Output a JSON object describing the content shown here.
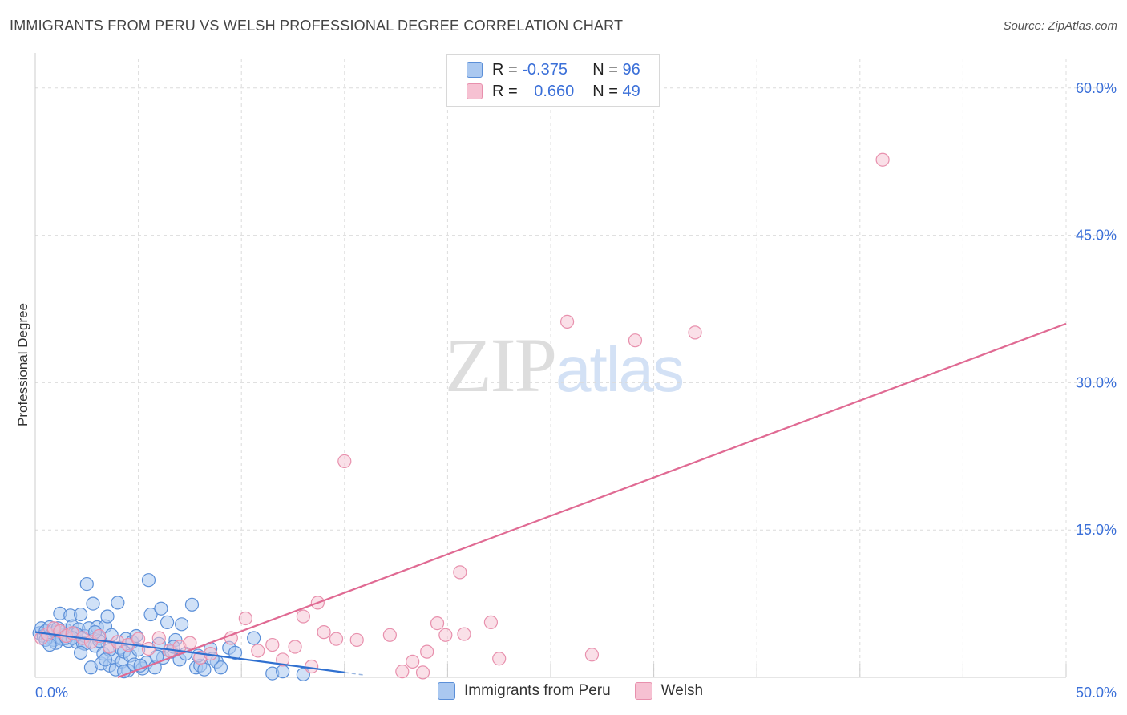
{
  "title": "IMMIGRANTS FROM PERU VS WELSH PROFESSIONAL DEGREE CORRELATION CHART",
  "source": "Source: ZipAtlas.com",
  "watermark": {
    "zip": "ZIP",
    "atlas": "atlas"
  },
  "legend": {
    "peru": {
      "r_label": "R = ",
      "r_value": "-0.375",
      "n_label": "N = ",
      "n_value": "96"
    },
    "welsh": {
      "r_label": "R = ",
      "r_value": "0.660",
      "n_label": "N = ",
      "n_value": "49"
    }
  },
  "colors": {
    "peru_fill": "#aac8f0",
    "peru_stroke": "#5b8fd8",
    "peru_line": "#3070d0",
    "welsh_fill": "#f6c1d2",
    "welsh_stroke": "#e890ad",
    "welsh_line": "#e06a93",
    "grid": "#dcdcdc",
    "tick_text": "#3a6fd8"
  },
  "chart_data": {
    "type": "scatter",
    "title": "IMMIGRANTS FROM PERU VS WELSH PROFESSIONAL DEGREE CORRELATION CHART",
    "xlabel": "",
    "ylabel": "Professional Degree",
    "xlim": [
      0,
      50
    ],
    "ylim": [
      0,
      63
    ],
    "x_tick_labels": [
      "0.0%",
      "50.0%"
    ],
    "y_ticks": [
      15,
      30,
      45,
      60
    ],
    "y_tick_labels": [
      "15.0%",
      "30.0%",
      "45.0%",
      "60.0%"
    ],
    "series": [
      {
        "name": "Immigrants from Peru",
        "r": -0.375,
        "n": 96,
        "trend": {
          "x0": 0,
          "y0": 4.6,
          "x1": 15.0,
          "y1": 0.5,
          "dash_to_x": 16.0
        },
        "points": [
          [
            0.2,
            4.5
          ],
          [
            0.3,
            5.0
          ],
          [
            0.4,
            4.2
          ],
          [
            0.5,
            4.7
          ],
          [
            0.6,
            4.0
          ],
          [
            0.7,
            5.1
          ],
          [
            0.8,
            4.4
          ],
          [
            0.9,
            3.8
          ],
          [
            1.0,
            4.6
          ],
          [
            1.1,
            4.1
          ],
          [
            1.2,
            6.5
          ],
          [
            1.3,
            3.9
          ],
          [
            1.4,
            4.3
          ],
          [
            1.5,
            4.8
          ],
          [
            1.6,
            3.7
          ],
          [
            1.7,
            6.3
          ],
          [
            1.8,
            5.2
          ],
          [
            1.9,
            4.5
          ],
          [
            2.0,
            3.6
          ],
          [
            2.1,
            4.9
          ],
          [
            2.2,
            6.4
          ],
          [
            2.3,
            3.5
          ],
          [
            2.4,
            4.2
          ],
          [
            2.5,
            9.5
          ],
          [
            2.6,
            5.0
          ],
          [
            2.7,
            1.0
          ],
          [
            2.8,
            7.5
          ],
          [
            2.9,
            3.2
          ],
          [
            3.0,
            5.1
          ],
          [
            3.1,
            4.0
          ],
          [
            3.2,
            1.4
          ],
          [
            3.3,
            2.4
          ],
          [
            3.4,
            5.2
          ],
          [
            3.5,
            6.2
          ],
          [
            3.6,
            1.2
          ],
          [
            3.7,
            4.3
          ],
          [
            3.8,
            2.0
          ],
          [
            3.9,
            0.8
          ],
          [
            4.0,
            7.6
          ],
          [
            4.1,
            3.0
          ],
          [
            4.2,
            1.6
          ],
          [
            4.3,
            2.6
          ],
          [
            4.4,
            3.9
          ],
          [
            4.5,
            0.7
          ],
          [
            4.6,
            2.2
          ],
          [
            4.7,
            3.6
          ],
          [
            4.8,
            1.3
          ],
          [
            5.0,
            2.8
          ],
          [
            5.2,
            0.9
          ],
          [
            5.4,
            1.5
          ],
          [
            5.5,
            9.9
          ],
          [
            5.6,
            6.4
          ],
          [
            5.8,
            1.0
          ],
          [
            6.0,
            3.4
          ],
          [
            6.1,
            7.0
          ],
          [
            6.2,
            2.0
          ],
          [
            6.4,
            5.6
          ],
          [
            6.6,
            2.6
          ],
          [
            6.8,
            3.8
          ],
          [
            7.0,
            1.8
          ],
          [
            7.1,
            5.4
          ],
          [
            7.3,
            2.4
          ],
          [
            7.6,
            7.4
          ],
          [
            7.8,
            1.0
          ],
          [
            8.0,
            1.2
          ],
          [
            8.2,
            0.8
          ],
          [
            8.5,
            2.9
          ],
          [
            8.8,
            1.6
          ],
          [
            9.0,
            1.0
          ],
          [
            9.4,
            3.0
          ],
          [
            10.6,
            4.0
          ],
          [
            1.0,
            3.5
          ],
          [
            1.5,
            4.0
          ],
          [
            2.0,
            4.4
          ],
          [
            0.5,
            3.8
          ],
          [
            0.9,
            4.8
          ],
          [
            1.8,
            4.0
          ],
          [
            2.4,
            3.4
          ],
          [
            3.1,
            3.7
          ],
          [
            2.9,
            4.6
          ],
          [
            1.1,
            5.0
          ],
          [
            0.7,
            3.3
          ],
          [
            3.6,
            2.8
          ],
          [
            4.3,
            0.6
          ],
          [
            5.1,
            1.2
          ],
          [
            2.2,
            2.5
          ],
          [
            3.4,
            1.8
          ],
          [
            4.9,
            4.2
          ],
          [
            5.9,
            2.1
          ],
          [
            6.7,
            3.1
          ],
          [
            7.9,
            2.2
          ],
          [
            8.6,
            1.9
          ],
          [
            9.7,
            2.5
          ],
          [
            11.5,
            0.4
          ],
          [
            12.0,
            0.6
          ],
          [
            13.0,
            0.3
          ]
        ]
      },
      {
        "name": "Welsh",
        "r": 0.66,
        "n": 49,
        "trend": {
          "x0": 4.0,
          "y0": 0.0,
          "x1": 50.0,
          "y1": 36.0
        },
        "points": [
          [
            0.3,
            4.0
          ],
          [
            0.6,
            4.4
          ],
          [
            0.9,
            5.0
          ],
          [
            1.2,
            4.7
          ],
          [
            1.5,
            4.2
          ],
          [
            1.8,
            4.5
          ],
          [
            2.3,
            4.0
          ],
          [
            2.7,
            3.6
          ],
          [
            3.1,
            4.2
          ],
          [
            3.6,
            3.1
          ],
          [
            4.0,
            3.6
          ],
          [
            4.5,
            3.3
          ],
          [
            5.0,
            3.9
          ],
          [
            5.5,
            2.9
          ],
          [
            6.0,
            4.0
          ],
          [
            6.5,
            2.7
          ],
          [
            7.0,
            3.1
          ],
          [
            7.5,
            3.5
          ],
          [
            8.0,
            2.0
          ],
          [
            8.5,
            2.4
          ],
          [
            9.5,
            4.0
          ],
          [
            10.2,
            6.0
          ],
          [
            10.8,
            2.7
          ],
          [
            11.5,
            3.3
          ],
          [
            12.0,
            1.8
          ],
          [
            12.6,
            3.1
          ],
          [
            13.0,
            6.2
          ],
          [
            13.4,
            1.1
          ],
          [
            13.7,
            7.6
          ],
          [
            14.0,
            4.6
          ],
          [
            14.6,
            3.9
          ],
          [
            15.0,
            22.0
          ],
          [
            15.6,
            3.8
          ],
          [
            17.2,
            4.3
          ],
          [
            17.8,
            0.6
          ],
          [
            18.3,
            1.6
          ],
          [
            18.8,
            0.5
          ],
          [
            19.0,
            2.6
          ],
          [
            19.5,
            5.5
          ],
          [
            19.9,
            4.3
          ],
          [
            20.6,
            10.7
          ],
          [
            20.8,
            4.4
          ],
          [
            22.1,
            5.6
          ],
          [
            22.5,
            1.9
          ],
          [
            25.8,
            36.2
          ],
          [
            27.0,
            2.3
          ],
          [
            29.1,
            34.3
          ],
          [
            32.0,
            35.1
          ],
          [
            41.1,
            52.7
          ]
        ]
      }
    ]
  },
  "bottom_legend": {
    "peru": "Immigrants from Peru",
    "welsh": "Welsh"
  }
}
